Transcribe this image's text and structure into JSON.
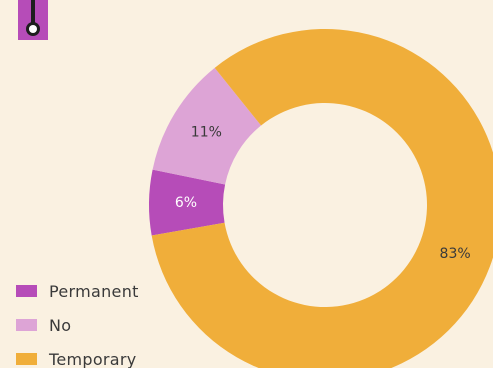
{
  "chart_data": {
    "type": "pie",
    "donut": true,
    "title": "",
    "categories": [
      "Permanent",
      "No",
      "Temporary"
    ],
    "values": [
      6,
      11,
      83
    ],
    "labels": [
      "6%",
      "11%",
      "83%"
    ],
    "colors": [
      "#B64CB8",
      "#DDA4D6",
      "#F0AE3A"
    ],
    "label_colors": [
      "#FFFFFF",
      "#3a3a3a",
      "#3a3a3a"
    ],
    "legend": "bottom-left"
  },
  "icon": {
    "name": "thermometer-icon",
    "color": "#B64CB8"
  },
  "legend": {
    "items": [
      {
        "label": "Permanent",
        "color": "#B64CB8"
      },
      {
        "label": "No",
        "color": "#DDA4D6"
      },
      {
        "label": "Temporary",
        "color": "#F0AE3A"
      }
    ]
  }
}
